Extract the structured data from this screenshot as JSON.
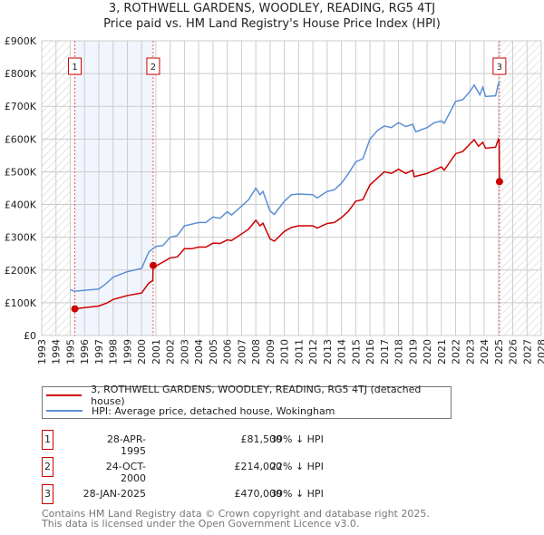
{
  "chart_data": {
    "type": "line",
    "title": "3, ROTHWELL GARDENS, WOODLEY, READING, RG5 4TJ",
    "subtitle": "Price paid vs. HM Land Registry's House Price Index (HPI)",
    "xlim": [
      1993,
      2028
    ],
    "ylim": [
      0,
      900000
    ],
    "y_ticks": [
      {
        "v": 0,
        "label": "£0"
      },
      {
        "v": 100000,
        "label": "£100K"
      },
      {
        "v": 200000,
        "label": "£200K"
      },
      {
        "v": 300000,
        "label": "£300K"
      },
      {
        "v": 400000,
        "label": "£400K"
      },
      {
        "v": 500000,
        "label": "£500K"
      },
      {
        "v": 600000,
        "label": "£600K"
      },
      {
        "v": 700000,
        "label": "£700K"
      },
      {
        "v": 800000,
        "label": "£800K"
      },
      {
        "v": 900000,
        "label": "£900K"
      }
    ],
    "x_ticks": [
      "1993",
      "1994",
      "1995",
      "1996",
      "1997",
      "1998",
      "1999",
      "2000",
      "2001",
      "2002",
      "2003",
      "2004",
      "2005",
      "2006",
      "2007",
      "2008",
      "2009",
      "2010",
      "2011",
      "2012",
      "2013",
      "2014",
      "2015",
      "2016",
      "2017",
      "2018",
      "2019",
      "2020",
      "2021",
      "2022",
      "2023",
      "2024",
      "2025",
      "2026",
      "2027",
      "2028"
    ],
    "grid": true,
    "hatched_before": 1995.0,
    "hatched_after": 2025.1,
    "series": [
      {
        "name": "3, ROTHWELL GARDENS, WOODLEY, READING, RG5 4TJ (detached house)",
        "color": "#cc0000",
        "points": [
          [
            1995.32,
            81.5
          ],
          [
            1996,
            85
          ],
          [
            1997,
            90
          ],
          [
            1997.6,
            100
          ],
          [
            1998,
            110
          ],
          [
            1999,
            122
          ],
          [
            2000,
            130
          ],
          [
            2000.5,
            160
          ],
          [
            2000.78,
            168
          ],
          [
            2000.81,
            214
          ],
          [
            2001,
            212
          ],
          [
            2002,
            237
          ],
          [
            2002.5,
            240
          ],
          [
            2003,
            265
          ],
          [
            2003.5,
            265
          ],
          [
            2004,
            270
          ],
          [
            2004.5,
            270
          ],
          [
            2005,
            282
          ],
          [
            2005.5,
            281
          ],
          [
            2006,
            292
          ],
          [
            2006.3,
            290
          ],
          [
            2007,
            310
          ],
          [
            2007.5,
            325
          ],
          [
            2008,
            352
          ],
          [
            2008.3,
            335
          ],
          [
            2008.5,
            343
          ],
          [
            2009,
            295
          ],
          [
            2009.3,
            288
          ],
          [
            2010,
            318
          ],
          [
            2010.5,
            330
          ],
          [
            2011,
            335
          ],
          [
            2012,
            335
          ],
          [
            2012.3,
            328
          ],
          [
            2013,
            342
          ],
          [
            2013.5,
            345
          ],
          [
            2014,
            360
          ],
          [
            2014.5,
            380
          ],
          [
            2015,
            410
          ],
          [
            2015.5,
            415
          ],
          [
            2016,
            460
          ],
          [
            2016.5,
            480
          ],
          [
            2017,
            500
          ],
          [
            2017.5,
            495
          ],
          [
            2018,
            508
          ],
          [
            2018.5,
            495
          ],
          [
            2019,
            505
          ],
          [
            2019.1,
            485
          ],
          [
            2020,
            495
          ],
          [
            2020.5,
            505
          ],
          [
            2021,
            515
          ],
          [
            2021.2,
            505
          ],
          [
            2022,
            555
          ],
          [
            2022.5,
            562
          ],
          [
            2023,
            585
          ],
          [
            2023.3,
            598
          ],
          [
            2023.6,
            578
          ],
          [
            2023.9,
            590
          ],
          [
            2024.1,
            572
          ],
          [
            2024.8,
            575
          ],
          [
            2025.0,
            600
          ],
          [
            2025.05,
            598
          ],
          [
            2025.07,
            470
          ]
        ]
      },
      {
        "name": "HPI: Average price, detached house, Wokingham",
        "color": "#5b8fd4",
        "points": [
          [
            1995.0,
            140
          ],
          [
            1995.3,
            135
          ],
          [
            1996,
            138
          ],
          [
            1997,
            142
          ],
          [
            1997.5,
            158
          ],
          [
            1998,
            178
          ],
          [
            1999,
            195
          ],
          [
            2000,
            205
          ],
          [
            2000.5,
            255
          ],
          [
            2001,
            272
          ],
          [
            2001.5,
            275
          ],
          [
            2002,
            300
          ],
          [
            2002.5,
            305
          ],
          [
            2003,
            335
          ],
          [
            2003.5,
            340
          ],
          [
            2004,
            345
          ],
          [
            2004.5,
            345
          ],
          [
            2005,
            362
          ],
          [
            2005.5,
            358
          ],
          [
            2006,
            378
          ],
          [
            2006.3,
            368
          ],
          [
            2007,
            395
          ],
          [
            2007.5,
            415
          ],
          [
            2008,
            450
          ],
          [
            2008.3,
            430
          ],
          [
            2008.5,
            440
          ],
          [
            2009,
            380
          ],
          [
            2009.3,
            370
          ],
          [
            2010,
            410
          ],
          [
            2010.5,
            430
          ],
          [
            2011,
            432
          ],
          [
            2012,
            430
          ],
          [
            2012.3,
            420
          ],
          [
            2013,
            440
          ],
          [
            2013.5,
            445
          ],
          [
            2014,
            465
          ],
          [
            2014.5,
            495
          ],
          [
            2015,
            530
          ],
          [
            2015.5,
            540
          ],
          [
            2016,
            600
          ],
          [
            2016.5,
            625
          ],
          [
            2017,
            640
          ],
          [
            2017.5,
            635
          ],
          [
            2018,
            650
          ],
          [
            2018.5,
            638
          ],
          [
            2019,
            645
          ],
          [
            2019.2,
            622
          ],
          [
            2020,
            635
          ],
          [
            2020.5,
            650
          ],
          [
            2021,
            655
          ],
          [
            2021.2,
            648
          ],
          [
            2022,
            715
          ],
          [
            2022.5,
            720
          ],
          [
            2023,
            745
          ],
          [
            2023.3,
            765
          ],
          [
            2023.7,
            735
          ],
          [
            2023.9,
            758
          ],
          [
            2024.1,
            730
          ],
          [
            2024.8,
            732
          ],
          [
            2025,
            770
          ],
          [
            2025.1,
            775
          ]
        ]
      }
    ],
    "sales": [
      {
        "id": "1",
        "x": 1995.32,
        "value": 81500,
        "date": "28-APR-1995",
        "price": "£81,500",
        "hpi": "39% ↓ HPI"
      },
      {
        "id": "2",
        "x": 2000.81,
        "value": 214000,
        "date": "24-OCT-2000",
        "price": "£214,000",
        "hpi": "22% ↓ HPI"
      },
      {
        "id": "3",
        "x": 2025.07,
        "value": 470000,
        "date": "28-JAN-2025",
        "price": "£470,000",
        "hpi": "39% ↓ HPI"
      }
    ]
  },
  "footer": {
    "line1": "Contains HM Land Registry data © Crown copyright and database right 2025.",
    "line2": "This data is licensed under the Open Government Licence v3.0."
  }
}
